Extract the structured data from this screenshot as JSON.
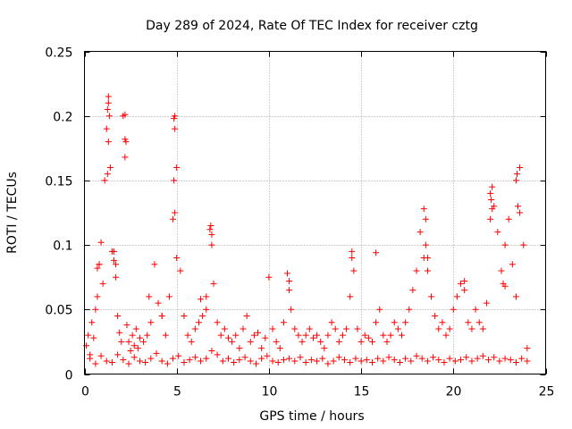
{
  "chart_data": {
    "type": "scatter",
    "title": "Day 289 of 2024, Rate Of TEC Index for receiver cztg",
    "xlabel": "GPS time / hours",
    "ylabel": "ROTI / TECUs",
    "xlim": [
      0,
      25
    ],
    "ylim": [
      0,
      0.25
    ],
    "x_ticks": [
      0,
      5,
      10,
      15,
      20,
      25
    ],
    "x_tick_labels": [
      "0",
      "5",
      "10",
      "15",
      "20",
      "25"
    ],
    "y_ticks": [
      0,
      0.05,
      0.1,
      0.15,
      0.2,
      0.25
    ],
    "y_tick_labels": [
      "0",
      "0.05",
      "0.1",
      "0.15",
      "0.2",
      "0.25"
    ],
    "grid": true,
    "marker": "plus",
    "series": [
      {
        "name": "ROTI",
        "color": "#ff0000",
        "approximate": true,
        "x": [
          0.1,
          0.2,
          0.3,
          0.4,
          0.5,
          0.6,
          0.7,
          0.8,
          0.9,
          1.0,
          1.1,
          1.2,
          1.3,
          1.4,
          1.5,
          1.6,
          1.7,
          1.8,
          1.9,
          2.0,
          2.1,
          2.2,
          2.3,
          2.4,
          2.5,
          2.6,
          2.7,
          2.8,
          2.9,
          3.0,
          3.2,
          3.4,
          3.6,
          3.8,
          4.0,
          4.2,
          4.4,
          4.6,
          4.8,
          4.9,
          5.0,
          5.2,
          5.4,
          5.6,
          5.8,
          6.0,
          6.2,
          6.4,
          6.6,
          6.8,
          6.9,
          7.0,
          7.2,
          7.4,
          7.6,
          7.8,
          8.0,
          8.2,
          8.4,
          8.6,
          8.8,
          9.0,
          9.2,
          9.4,
          9.6,
          9.8,
          10.0,
          10.2,
          10.4,
          10.6,
          10.8,
          11.0,
          11.1,
          11.2,
          11.4,
          11.6,
          11.8,
          12.0,
          12.2,
          12.4,
          12.6,
          12.8,
          13.0,
          13.2,
          13.4,
          13.6,
          13.8,
          14.0,
          14.2,
          14.4,
          14.5,
          14.6,
          14.8,
          15.0,
          15.2,
          15.4,
          15.6,
          15.8,
          16.0,
          16.2,
          16.4,
          16.6,
          16.8,
          17.0,
          17.2,
          17.4,
          17.6,
          17.8,
          18.0,
          18.2,
          18.4,
          18.5,
          18.6,
          18.8,
          19.0,
          19.2,
          19.4,
          19.6,
          19.8,
          20.0,
          20.2,
          20.4,
          20.6,
          20.8,
          21.0,
          21.2,
          21.4,
          21.6,
          21.8,
          22.0,
          22.1,
          22.2,
          22.4,
          22.6,
          22.8,
          23.0,
          23.2,
          23.4,
          23.5,
          23.6,
          23.8,
          24.0,
          0.3,
          0.6,
          0.9,
          1.2,
          1.5,
          1.8,
          2.1,
          2.4,
          2.7,
          3.0,
          3.3,
          3.6,
          3.9,
          4.2,
          4.5,
          4.8,
          5.1,
          5.4,
          5.7,
          6.0,
          6.3,
          6.6,
          6.9,
          7.2,
          7.5,
          7.8,
          8.1,
          8.4,
          8.7,
          9.0,
          9.3,
          9.6,
          9.9,
          10.2,
          10.5,
          10.8,
          11.1,
          11.4,
          11.7,
          12.0,
          12.3,
          12.6,
          12.9,
          13.2,
          13.5,
          13.8,
          14.1,
          14.4,
          14.7,
          15.0,
          15.3,
          15.6,
          15.9,
          16.2,
          16.5,
          16.8,
          17.1,
          17.4,
          17.7,
          18.0,
          18.3,
          18.6,
          18.9,
          19.2,
          19.5,
          19.8,
          20.1,
          20.4,
          20.7,
          21.0,
          21.3,
          21.6,
          21.9,
          22.2,
          22.5,
          22.8,
          23.1,
          23.4,
          23.7,
          24.0,
          1.25,
          1.3,
          1.35,
          1.3,
          1.25,
          2.2,
          2.25,
          2.2,
          4.85,
          4.9,
          4.85,
          4.9,
          6.85,
          6.9,
          22.0,
          22.05,
          22.1,
          23.4,
          23.45,
          23.6,
          1.6,
          1.7,
          0.8,
          0.7,
          5.0,
          18.5,
          18.4,
          18.6,
          11.1,
          14.5,
          15.8,
          20.6,
          22.7,
          22.8,
          6.3,
          6.6,
          3.5,
          4.2
        ],
        "y": [
          0.022,
          0.03,
          0.015,
          0.04,
          0.028,
          0.05,
          0.06,
          0.085,
          0.102,
          0.07,
          0.15,
          0.19,
          0.215,
          0.16,
          0.095,
          0.088,
          0.075,
          0.045,
          0.032,
          0.025,
          0.2,
          0.182,
          0.038,
          0.025,
          0.018,
          0.03,
          0.022,
          0.035,
          0.02,
          0.028,
          0.025,
          0.03,
          0.04,
          0.085,
          0.055,
          0.045,
          0.03,
          0.06,
          0.12,
          0.2,
          0.16,
          0.08,
          0.045,
          0.03,
          0.025,
          0.035,
          0.04,
          0.045,
          0.06,
          0.112,
          0.1,
          0.07,
          0.04,
          0.03,
          0.035,
          0.028,
          0.025,
          0.03,
          0.02,
          0.035,
          0.045,
          0.025,
          0.03,
          0.032,
          0.02,
          0.028,
          0.075,
          0.035,
          0.025,
          0.02,
          0.04,
          0.078,
          0.072,
          0.05,
          0.035,
          0.03,
          0.025,
          0.03,
          0.035,
          0.028,
          0.03,
          0.025,
          0.02,
          0.03,
          0.04,
          0.035,
          0.025,
          0.03,
          0.035,
          0.06,
          0.095,
          0.08,
          0.035,
          0.025,
          0.03,
          0.028,
          0.025,
          0.04,
          0.05,
          0.03,
          0.025,
          0.03,
          0.04,
          0.035,
          0.03,
          0.04,
          0.05,
          0.065,
          0.08,
          0.11,
          0.128,
          0.12,
          0.09,
          0.06,
          0.045,
          0.035,
          0.04,
          0.03,
          0.035,
          0.05,
          0.06,
          0.07,
          0.065,
          0.04,
          0.035,
          0.05,
          0.04,
          0.035,
          0.055,
          0.14,
          0.145,
          0.13,
          0.11,
          0.08,
          0.1,
          0.12,
          0.085,
          0.06,
          0.13,
          0.16,
          0.1,
          0.02,
          0.012,
          0.008,
          0.014,
          0.01,
          0.009,
          0.015,
          0.011,
          0.008,
          0.013,
          0.01,
          0.009,
          0.012,
          0.016,
          0.01,
          0.008,
          0.012,
          0.014,
          0.009,
          0.011,
          0.013,
          0.01,
          0.012,
          0.018,
          0.015,
          0.01,
          0.012,
          0.009,
          0.011,
          0.013,
          0.01,
          0.008,
          0.012,
          0.014,
          0.01,
          0.009,
          0.011,
          0.012,
          0.01,
          0.013,
          0.009,
          0.011,
          0.01,
          0.012,
          0.008,
          0.01,
          0.013,
          0.011,
          0.009,
          0.012,
          0.01,
          0.011,
          0.009,
          0.012,
          0.01,
          0.013,
          0.011,
          0.009,
          0.012,
          0.01,
          0.014,
          0.012,
          0.01,
          0.013,
          0.011,
          0.009,
          0.012,
          0.01,
          0.011,
          0.013,
          0.01,
          0.012,
          0.014,
          0.011,
          0.013,
          0.01,
          0.012,
          0.011,
          0.009,
          0.012,
          0.01,
          0.205,
          0.21,
          0.2,
          0.18,
          0.155,
          0.201,
          0.18,
          0.168,
          0.198,
          0.19,
          0.15,
          0.125,
          0.115,
          0.108,
          0.12,
          0.135,
          0.128,
          0.15,
          0.155,
          0.125,
          0.095,
          0.085,
          0.085,
          0.082,
          0.09,
          0.1,
          0.09,
          0.08,
          0.065,
          0.09,
          0.094,
          0.072,
          0.07,
          0.068,
          0.058,
          0.05,
          0.06,
          0.045
        ]
      }
    ]
  }
}
